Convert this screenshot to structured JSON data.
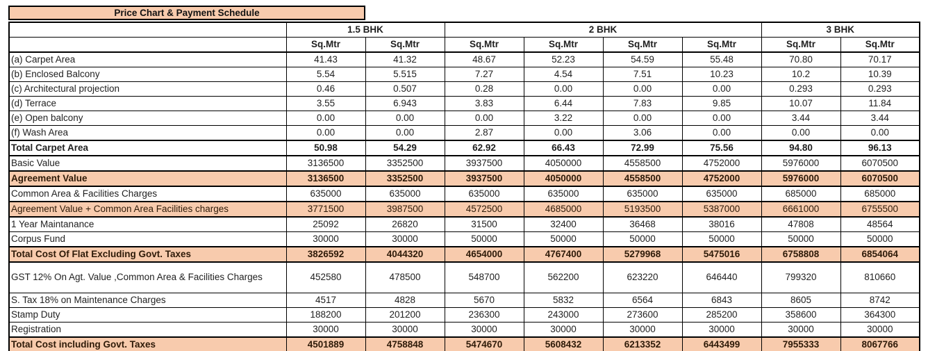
{
  "title": "Price Chart & Payment Schedule",
  "colors": {
    "highlight_fill": "#F8CBAD",
    "border": "#000000",
    "text": "#1f1f1f"
  },
  "table": {
    "groups": [
      {
        "label": "1.5 BHK",
        "span": 2
      },
      {
        "label": "2 BHK",
        "span": 4
      },
      {
        "label": "3 BHK",
        "span": 2
      }
    ],
    "units": [
      "Sq.Mtr",
      "Sq.Mtr",
      "Sq.Mtr",
      "Sq.Mtr",
      "Sq.Mtr",
      "Sq.Mtr",
      "Sq.Mtr",
      "Sq.Mtr"
    ],
    "rows": [
      {
        "label": "(a) Carpet Area",
        "style": "normal",
        "values": [
          "41.43",
          "41.32",
          "48.67",
          "52.23",
          "54.59",
          "55.48",
          "70.80",
          "70.17"
        ]
      },
      {
        "label": "(b) Enclosed Balcony",
        "style": "normal",
        "values": [
          "5.54",
          "5.515",
          "7.27",
          "4.54",
          "7.51",
          "10.23",
          "10.2",
          "10.39"
        ]
      },
      {
        "label": "(c) Architectural projection",
        "style": "normal",
        "values": [
          "0.46",
          "0.507",
          "0.28",
          "0.00",
          "0.00",
          "0.00",
          "0.293",
          "0.293"
        ]
      },
      {
        "label": "(d) Terrace",
        "style": "normal",
        "values": [
          "3.55",
          "6.943",
          "3.83",
          "6.44",
          "7.83",
          "9.85",
          "10.07",
          "11.84"
        ]
      },
      {
        "label": "(e) Open balcony",
        "style": "normal",
        "values": [
          "0.00",
          "0.00",
          "0.00",
          "3.22",
          "0.00",
          "0.00",
          "3.44",
          "3.44"
        ]
      },
      {
        "label": "(f) Wash Area",
        "style": "normal",
        "values": [
          "0.00",
          "0.00",
          "2.87",
          "0.00",
          "3.06",
          "0.00",
          "0.00",
          "0.00"
        ]
      },
      {
        "label": "Total Carpet Area",
        "style": "total",
        "values": [
          "50.98",
          "54.29",
          "62.92",
          "66.43",
          "72.99",
          "75.56",
          "94.80",
          "96.13"
        ]
      },
      {
        "label": "Basic Value",
        "style": "normal",
        "values": [
          "3136500",
          "3352500",
          "3937500",
          "4050000",
          "4558500",
          "4752000",
          "5976000",
          "6070500"
        ]
      },
      {
        "label": "Agreement Value",
        "style": "highlight-bold",
        "values": [
          "3136500",
          "3352500",
          "3937500",
          "4050000",
          "4558500",
          "4752000",
          "5976000",
          "6070500"
        ]
      },
      {
        "label": "Common Area & Facilities Charges",
        "style": "normal",
        "values": [
          "635000",
          "635000",
          "635000",
          "635000",
          "635000",
          "635000",
          "685000",
          "685000"
        ]
      },
      {
        "label": "Agreement Value + Common Area Facilities charges",
        "style": "highlight",
        "values": [
          "3771500",
          "3987500",
          "4572500",
          "4685000",
          "5193500",
          "5387000",
          "6661000",
          "6755500"
        ]
      },
      {
        "label": "1 Year Maintanance",
        "style": "normal",
        "values": [
          "25092",
          "26820",
          "31500",
          "32400",
          "36468",
          "38016",
          "47808",
          "48564"
        ]
      },
      {
        "label": "Corpus Fund",
        "style": "normal",
        "values": [
          "30000",
          "30000",
          "50000",
          "50000",
          "50000",
          "50000",
          "50000",
          "50000"
        ]
      },
      {
        "label": "Total Cost Of Flat Excluding Govt. Taxes",
        "style": "highlight-bold",
        "values": [
          "3826592",
          "4044320",
          "4654000",
          "4767400",
          "5279968",
          "5475016",
          "6758808",
          "6854064"
        ]
      },
      {
        "label": "GST 12% On Agt. Value ,Common Area & Facilities Charges",
        "style": "tall",
        "values": [
          "452580",
          "478500",
          "548700",
          "562200",
          "623220",
          "646440",
          "799320",
          "810660"
        ]
      },
      {
        "label": "S. Tax 18% on Maintenance Charges",
        "style": "normal",
        "values": [
          "4517",
          "4828",
          "5670",
          "5832",
          "6564",
          "6843",
          "8605",
          "8742"
        ]
      },
      {
        "label": "Stamp Duty",
        "style": "normal",
        "values": [
          "188200",
          "201200",
          "236300",
          "243000",
          "273600",
          "285200",
          "358600",
          "364300"
        ]
      },
      {
        "label": "Registration",
        "style": "normal",
        "values": [
          "30000",
          "30000",
          "30000",
          "30000",
          "30000",
          "30000",
          "30000",
          "30000"
        ]
      },
      {
        "label": "Total Cost including Govt. Taxes",
        "style": "highlight-bold",
        "values": [
          "4501889",
          "4758848",
          "5474670",
          "5608432",
          "6213352",
          "6443499",
          "7955333",
          "8067766"
        ]
      }
    ]
  }
}
